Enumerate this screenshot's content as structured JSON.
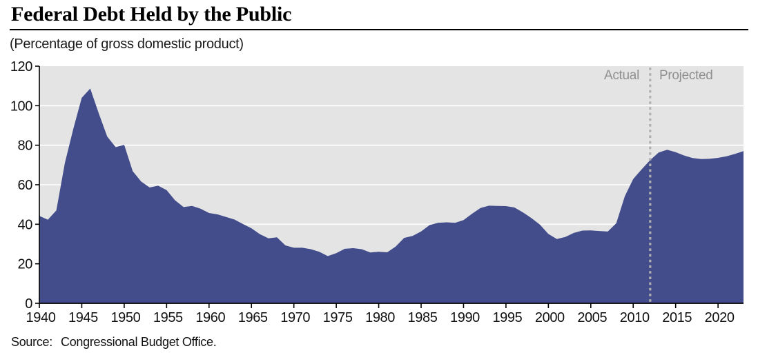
{
  "header": {
    "title": "Federal Debt Held by the Public",
    "subtitle": "(Percentage of gross domestic product)"
  },
  "annotations": {
    "actual_label": "Actual",
    "projected_label": "Projected"
  },
  "source": {
    "label": "Source:",
    "text": "Congressional Budget Office."
  },
  "colors": {
    "area_fill": "#434D8B",
    "plot_background": "#E4E4E4",
    "gridline": "#FFFFFF",
    "axis": "#000000",
    "tick_label": "#111111",
    "divider_dash": "#B0B0B0",
    "annotation_text": "#8F8F8F"
  },
  "chart_data": {
    "type": "area",
    "title": "Federal Debt Held by the Public",
    "ylabel": "(Percentage of gross domestic product)",
    "x_start": 1940,
    "x_end": 2023,
    "ylim": [
      0,
      120
    ],
    "y_ticks": [
      0,
      20,
      40,
      60,
      80,
      100,
      120
    ],
    "x_ticks": [
      1940,
      1945,
      1950,
      1955,
      1960,
      1965,
      1970,
      1975,
      1980,
      1985,
      1990,
      1995,
      2000,
      2005,
      2010,
      2015,
      2020
    ],
    "grid": "horizontal-only",
    "divider": {
      "x": 2012,
      "label_left": "Actual",
      "label_right": "Projected"
    },
    "series": [
      {
        "name": "Federal debt held by the public (% of GDP)",
        "values": [
          44.2,
          42.3,
          47.0,
          70.9,
          88.3,
          104.0,
          108.7,
          96.2,
          84.4,
          79.0,
          80.2,
          66.9,
          61.6,
          58.6,
          59.5,
          57.3,
          52.1,
          48.7,
          49.3,
          47.9,
          45.7,
          45.0,
          43.7,
          42.4,
          40.1,
          38.0,
          35.0,
          32.9,
          33.4,
          29.3,
          28.1,
          28.1,
          27.4,
          26.1,
          23.9,
          25.4,
          27.6,
          27.9,
          27.4,
          25.7,
          26.1,
          25.8,
          28.7,
          33.1,
          34.1,
          36.4,
          39.6,
          40.7,
          41.0,
          40.7,
          42.1,
          45.3,
          48.2,
          49.4,
          49.3,
          49.2,
          48.5,
          46.0,
          43.1,
          39.8,
          35.1,
          32.5,
          33.6,
          35.6,
          36.8,
          36.9,
          36.6,
          36.3,
          40.5,
          54.1,
          62.9,
          67.8,
          72.5,
          76.3,
          77.7,
          76.5,
          74.8,
          73.5,
          73.0,
          73.1,
          73.6,
          74.4,
          75.6,
          77.0
        ]
      }
    ]
  }
}
